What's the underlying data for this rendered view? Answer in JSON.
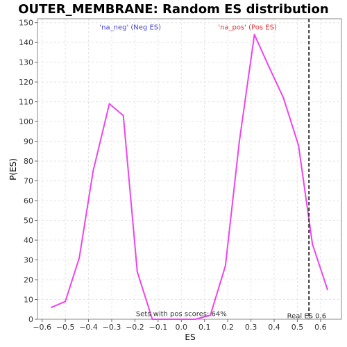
{
  "chart_data": {
    "type": "line",
    "title": "OUTER_MEMBRANE: Random ES distribution",
    "xlabel": "ES",
    "ylabel": "P(ES)",
    "xlim": [
      -0.62,
      0.69
    ],
    "ylim": [
      0,
      152
    ],
    "xticks": [
      -0.6,
      -0.5,
      -0.4,
      -0.3,
      -0.2,
      -0.1,
      0.0,
      0.1,
      0.2,
      0.3,
      0.4,
      0.5,
      0.6
    ],
    "xtick_labels": [
      "−0.6",
      "−0.5",
      "−0.4",
      "−0.3",
      "−0.2",
      "−0.1",
      "0.0",
      "0.1",
      "0.2",
      "0.3",
      "0.4",
      "0.5",
      "0.6"
    ],
    "yticks": [
      0,
      10,
      20,
      30,
      40,
      50,
      60,
      70,
      80,
      90,
      100,
      110,
      120,
      130,
      140,
      150
    ],
    "ytick_labels": [
      "0",
      "10",
      "20",
      "30",
      "40",
      "50",
      "60",
      "70",
      "80",
      "90",
      "100",
      "110",
      "120",
      "130",
      "140",
      "150"
    ],
    "grid": true,
    "series": [
      {
        "color": "#ee44ee",
        "x": [
          -0.56,
          -0.5,
          -0.44,
          -0.38,
          -0.31,
          -0.25,
          -0.19,
          -0.125,
          -0.06,
          0.0,
          0.06,
          0.125,
          0.19,
          0.25,
          0.315,
          0.38,
          0.44,
          0.505,
          0.565,
          0.63
        ],
        "y": [
          6,
          9,
          31,
          75,
          109,
          103,
          24,
          0,
          0,
          0,
          0,
          2,
          27,
          90,
          144,
          127,
          112,
          88,
          38,
          15
        ]
      }
    ],
    "vline": {
      "x": 0.55,
      "color": "#333333"
    },
    "annotations": [
      {
        "text": "'na_neg' (Neg ES)",
        "x": -0.22,
        "y": 146.5,
        "color": "#4444cc"
      },
      {
        "text": "'na_pos' (Pos ES)",
        "x": 0.285,
        "y": 146.5,
        "color": "#dd3333"
      },
      {
        "text": "Sets with pos scores: 64%",
        "x": 0.0,
        "y": 1.5,
        "color": "#333333"
      },
      {
        "text": "Real ES 0.6",
        "x": 0.54,
        "y": 0.5,
        "color": "#333333"
      }
    ]
  }
}
